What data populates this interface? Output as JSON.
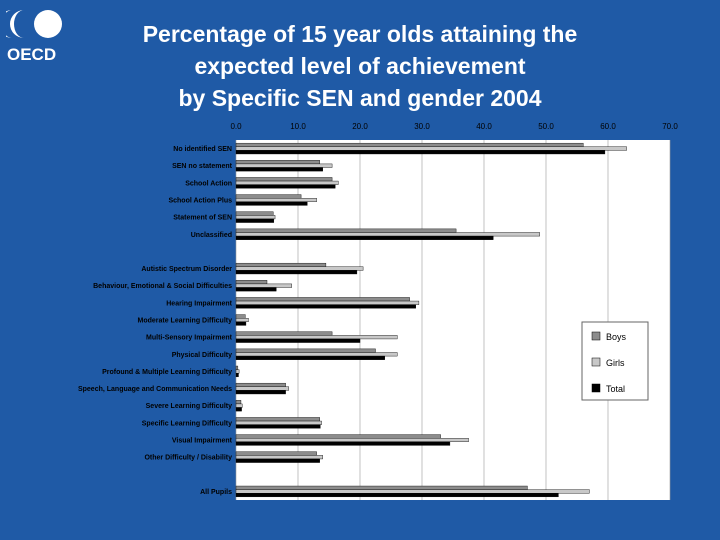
{
  "logo": {
    "text": "OECD",
    "icon": "oecd-logo-icon"
  },
  "title": {
    "line1": "Percentage of 15 year olds attaining the",
    "line2": "expected level of achievement",
    "line3": "by Specific SEN and gender 2004"
  },
  "colors": {
    "background": "#1f5aa6",
    "boys": "#8c8c8c",
    "girls": "#c8c8c8",
    "total": "#000000",
    "text": "#000000"
  },
  "chart_data": {
    "type": "bar",
    "orientation": "horizontal",
    "title": "Percentage of 15 year olds attaining the expected level of achievement by Specific SEN and gender 2004",
    "xlim": [
      0,
      70
    ],
    "xticks": [
      "0.0",
      "10.0",
      "20.0",
      "30.0",
      "40.0",
      "50.0",
      "60.0",
      "70.0"
    ],
    "grid": true,
    "legend_position": "right",
    "categories": [
      "No identified SEN",
      "SEN no statement",
      "School Action",
      "School Action Plus",
      "Statement of SEN",
      "Unclassified",
      "",
      "Autistic Spectrum Disorder",
      "Behaviour, Emotional & Social Difficulties",
      "Hearing Impairment",
      "Moderate Learning Difficulty",
      "Multi-Sensory Impairment",
      "Physical Difficulty",
      "Profound & Multiple Learning Difficulty",
      "Speech, Language and Communication Needs",
      "Severe Learning Difficulty",
      "Specific Learning Difficulty",
      "Visual Impairment",
      "Other Difficulty / Disability",
      "",
      "All Pupils"
    ],
    "series": [
      {
        "name": "Boys",
        "values": [
          56.0,
          13.5,
          15.5,
          10.5,
          6.0,
          35.5,
          null,
          14.5,
          5.0,
          28.0,
          1.5,
          15.5,
          22.5,
          0.3,
          8.0,
          0.8,
          13.5,
          33.0,
          13.0,
          null,
          47.0
        ]
      },
      {
        "name": "Girls",
        "values": [
          63.0,
          15.5,
          16.5,
          13.0,
          6.3,
          49.0,
          null,
          20.5,
          9.0,
          29.5,
          2.0,
          26.0,
          26.0,
          0.5,
          8.5,
          1.0,
          13.8,
          37.5,
          14.0,
          null,
          57.0
        ]
      },
      {
        "name": "Total",
        "values": [
          59.5,
          14.0,
          16.0,
          11.5,
          6.1,
          41.5,
          null,
          19.5,
          6.5,
          29.0,
          1.6,
          20.0,
          24.0,
          0.4,
          8.0,
          0.9,
          13.6,
          34.5,
          13.5,
          null,
          52.0
        ]
      }
    ]
  }
}
